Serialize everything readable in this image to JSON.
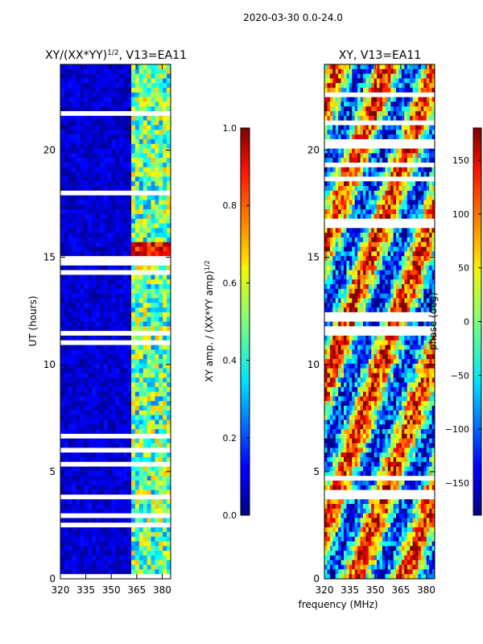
{
  "figure_title": "2020-03-30 0.0-24.0",
  "xlabel_shared": "frequency (MHz)",
  "chart_data": [
    {
      "type": "heatmap",
      "title_main": "XY/(XX*YY)",
      "title_sup": "1/2",
      "title_suffix": ", V13=EA11",
      "ylabel": "UT (hours)",
      "x_ticks": [
        "320",
        "335",
        "350",
        "365",
        "380"
      ],
      "x_tick_values": [
        320,
        335,
        350,
        365,
        380
      ],
      "xlim": [
        320,
        385
      ],
      "y_ticks": [
        "0",
        "5",
        "10",
        "15",
        "20"
      ],
      "y_tick_values": [
        0,
        5,
        10,
        15,
        20
      ],
      "ylim": [
        0,
        24
      ],
      "colorbar": {
        "label_main": "XY amp. / (XX*YY amp)",
        "label_sup": "1/2",
        "ticks": [
          "0.0",
          "0.2",
          "0.4",
          "0.6",
          "0.8",
          "1.0"
        ],
        "tick_values": [
          0.0,
          0.2,
          0.4,
          0.6,
          0.8,
          1.0
        ],
        "range": [
          0.0,
          1.0
        ]
      }
    },
    {
      "type": "heatmap",
      "title_main": "XY, V13=EA11",
      "ylabel": "",
      "x_ticks": [
        "320",
        "335",
        "350",
        "365",
        "380"
      ],
      "x_tick_values": [
        320,
        335,
        350,
        365,
        380
      ],
      "xlim": [
        320,
        385
      ],
      "y_ticks": [
        "0",
        "5",
        "10",
        "15",
        "20"
      ],
      "y_tick_values": [
        0,
        5,
        10,
        15,
        20
      ],
      "ylim": [
        0,
        24
      ],
      "colorbar": {
        "label_main": "phase (deg)",
        "ticks": [
          "−150",
          "−100",
          "−50",
          "0",
          "50",
          "100",
          "150"
        ],
        "tick_values": [
          -150,
          -100,
          -50,
          0,
          50,
          100,
          150
        ],
        "range": [
          -180,
          180
        ]
      }
    }
  ]
}
